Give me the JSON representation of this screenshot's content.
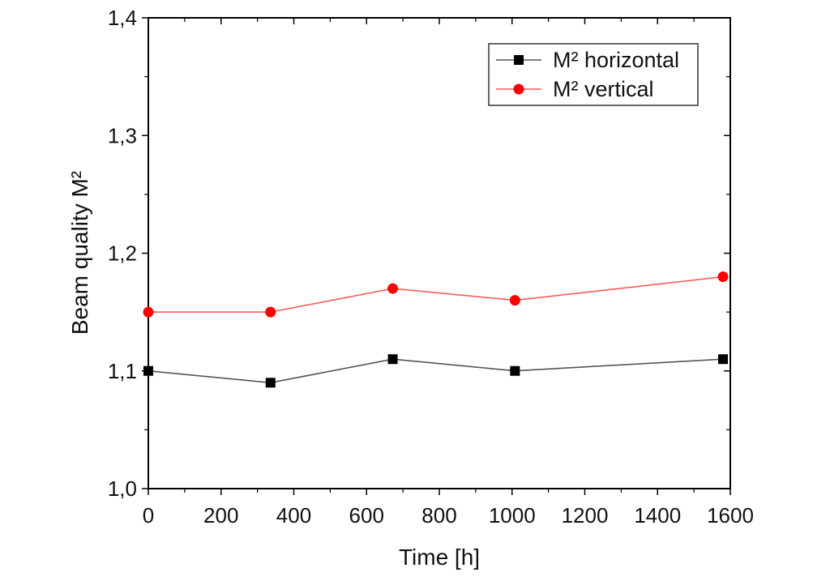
{
  "chart_data": {
    "type": "line",
    "title": "",
    "xlabel": "Time [h]",
    "ylabel": "Beam quality M²",
    "xlim": [
      0,
      1600
    ],
    "ylim": [
      1.0,
      1.4
    ],
    "x_ticks": [
      0,
      200,
      400,
      600,
      800,
      1000,
      1200,
      1400,
      1600
    ],
    "x_tick_labels": [
      "0",
      "200",
      "400",
      "600",
      "800",
      "1000",
      "1200",
      "1400",
      "1600"
    ],
    "y_ticks": [
      1.0,
      1.1,
      1.2,
      1.3,
      1.4
    ],
    "y_tick_labels": [
      "1,0",
      "1,1",
      "1,2",
      "1,3",
      "1,4"
    ],
    "grid": false,
    "legend_position": "top-right",
    "series": [
      {
        "name": "M² horizontal",
        "color": "#000000",
        "line_color": "#555555",
        "marker": "square",
        "x": [
          0,
          336,
          672,
          1008,
          1580
        ],
        "y": [
          1.1,
          1.09,
          1.11,
          1.1,
          1.11
        ]
      },
      {
        "name": "M² vertical",
        "color": "#ff0000",
        "line_color": "#ff5a5a",
        "marker": "circle",
        "x": [
          0,
          336,
          672,
          1008,
          1580
        ],
        "y": [
          1.15,
          1.15,
          1.17,
          1.16,
          1.18
        ]
      }
    ]
  }
}
